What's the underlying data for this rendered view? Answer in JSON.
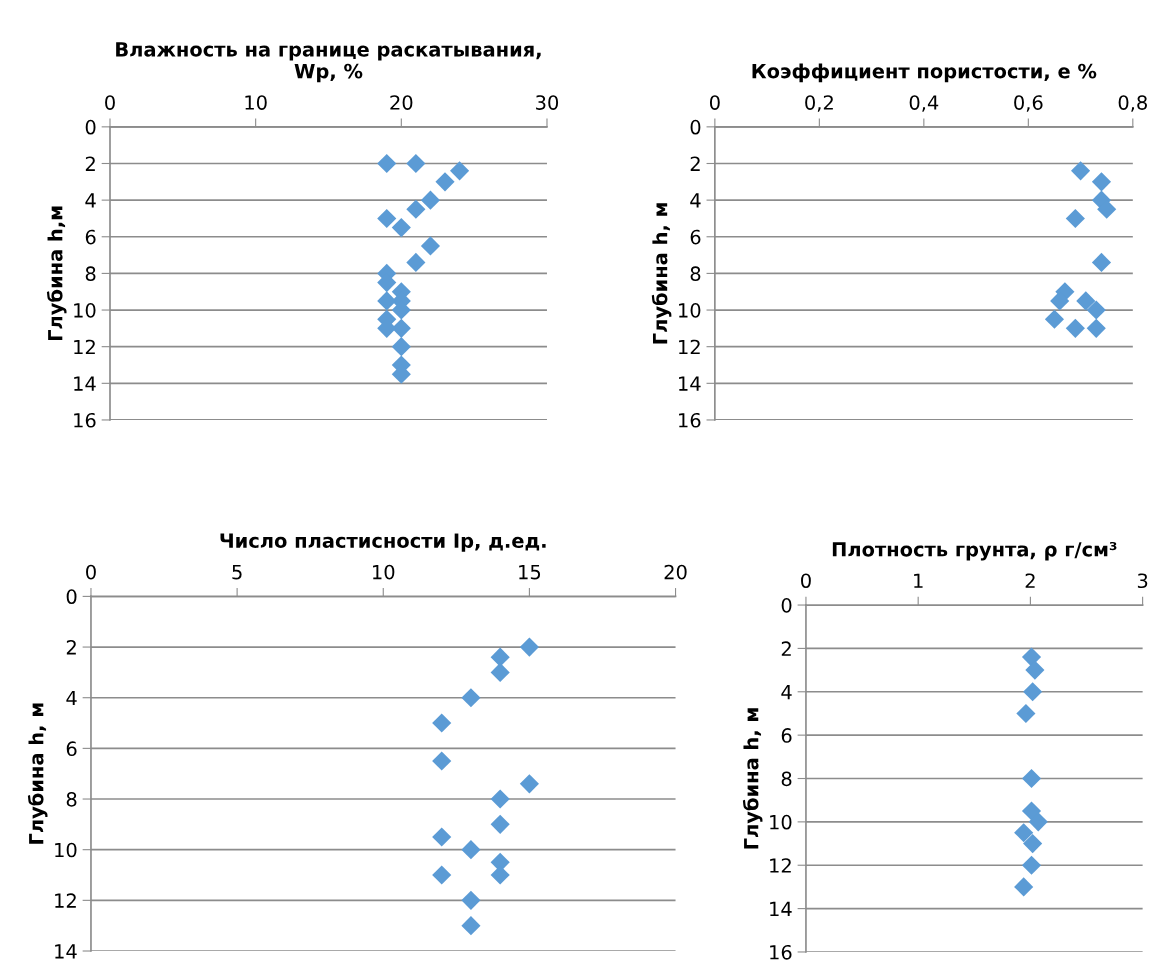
{
  "chart_data": [
    {
      "type": "scatter",
      "title": "Влажность на границе раскатывания,\nWp, %",
      "ylabel": "Глубина h,м",
      "marker": "diamond",
      "grid": "y",
      "xlim": [
        0,
        30
      ],
      "xticks": [
        0,
        10,
        20,
        30
      ],
      "ylim": [
        16,
        0
      ],
      "yticks": [
        0,
        2,
        4,
        6,
        8,
        10,
        12,
        14,
        16
      ],
      "series": [
        {
          "color": "#5b9bd5",
          "x": [
            19,
            21,
            24,
            23,
            22,
            21,
            19,
            20,
            22,
            21,
            19,
            19,
            20,
            20,
            19,
            20,
            19,
            20,
            19,
            20,
            20,
            20
          ],
          "values": [
            2,
            2,
            2.4,
            3,
            4,
            4.5,
            5,
            5.5,
            6.5,
            7.4,
            8,
            8.5,
            9,
            9.5,
            9.5,
            10,
            10.5,
            11,
            11,
            12,
            13,
            13.5
          ]
        }
      ]
    },
    {
      "type": "scatter",
      "title": "Коэффициент пористости, е %",
      "ylabel": "Глубина h, м",
      "marker": "diamond",
      "grid": "y",
      "xlim": [
        0,
        0.8
      ],
      "xticks": [
        0,
        {
          "value": 0.2,
          "label": "0,2"
        },
        {
          "value": 0.4,
          "label": "0,4"
        },
        {
          "value": 0.6,
          "label": "0,6"
        },
        {
          "value": 0.8,
          "label": "0,8"
        }
      ],
      "ylim": [
        16,
        0
      ],
      "yticks": [
        0,
        2,
        4,
        6,
        8,
        10,
        12,
        14,
        16
      ],
      "series": [
        {
          "color": "#5b9bd5",
          "x": [
            0.7,
            0.74,
            0.74,
            0.75,
            0.69,
            0.74,
            0.67,
            0.66,
            0.71,
            0.73,
            0.65,
            0.69,
            0.73
          ],
          "values": [
            2.4,
            3,
            4,
            4.5,
            5,
            7.4,
            9,
            9.5,
            9.5,
            10,
            10.5,
            11,
            11
          ]
        }
      ]
    },
    {
      "type": "scatter",
      "title": "Число пластисности Ip, д.ед.",
      "ylabel": "Глубина h, м",
      "marker": "diamond",
      "grid": "y",
      "xlim": [
        0,
        20
      ],
      "xticks": [
        0,
        5,
        10,
        15,
        20
      ],
      "ylim": [
        14,
        0
      ],
      "yticks": [
        0,
        2,
        4,
        6,
        8,
        10,
        12,
        14
      ],
      "series": [
        {
          "color": "#5b9bd5",
          "x": [
            15,
            14,
            14,
            13,
            12,
            12,
            15,
            14,
            14,
            12,
            13,
            14,
            14,
            12,
            13,
            13
          ],
          "values": [
            2,
            2.4,
            3,
            4,
            5,
            6.5,
            7.4,
            8,
            9,
            9.5,
            10,
            10.5,
            11,
            11,
            12,
            13
          ]
        }
      ]
    },
    {
      "type": "scatter",
      "title": "Плотность грунта, ρ г/см³",
      "ylabel": "Глубина h, м",
      "marker": "diamond",
      "grid": "y",
      "xlim": [
        0,
        3
      ],
      "xticks": [
        0,
        1,
        2,
        3
      ],
      "ylim": [
        16,
        0
      ],
      "yticks": [
        0,
        2,
        4,
        6,
        8,
        10,
        12,
        14,
        16
      ],
      "series": [
        {
          "color": "#5b9bd5",
          "x": [
            2.01,
            2.04,
            2.02,
            1.96,
            2.01,
            2.01,
            2.07,
            1.94,
            2.02,
            2.01,
            1.94
          ],
          "values": [
            2.4,
            3,
            4,
            5,
            8,
            9.5,
            10,
            10.5,
            11,
            12,
            13
          ]
        }
      ]
    }
  ]
}
